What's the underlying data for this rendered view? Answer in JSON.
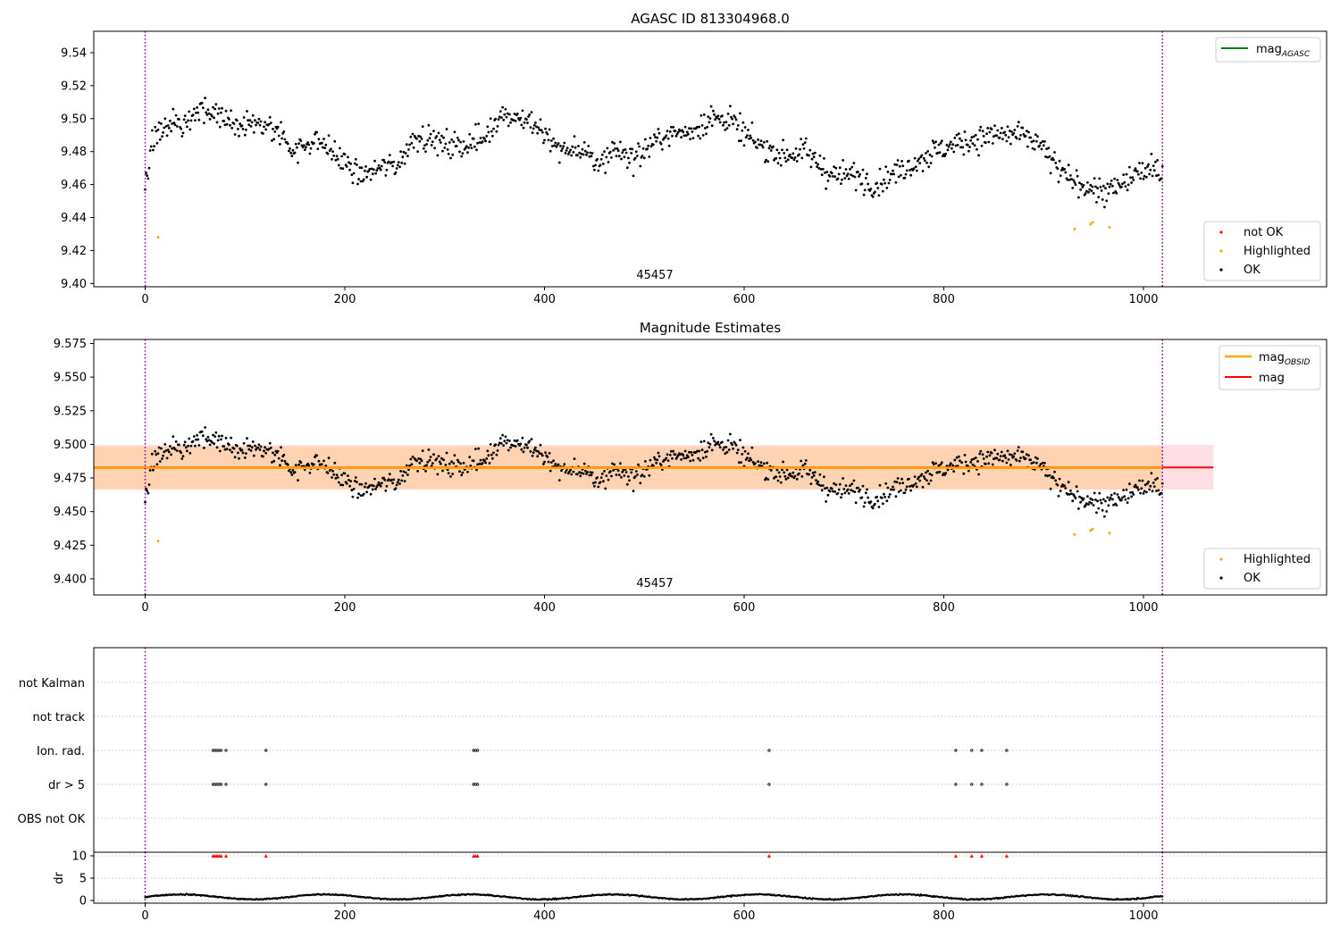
{
  "chart_data": [
    {
      "type": "scatter",
      "title": "AGASC ID 813304968.0",
      "xlim": [
        -50,
        1180
      ],
      "ylim": [
        9.398,
        9.553
      ],
      "xticks": [
        "0",
        "200",
        "400",
        "600",
        "800",
        "1000"
      ],
      "yticks": [
        "9.40",
        "9.42",
        "9.44",
        "9.46",
        "9.48",
        "9.50",
        "9.52",
        "9.54"
      ],
      "annotation": "45457",
      "obs_bounds": [
        0,
        1019
      ],
      "legend_lines": [
        {
          "label": "mag",
          "subscript": "AGASC",
          "color": "#008000"
        }
      ],
      "legend_points": [
        {
          "label": "not OK",
          "color": "#ff0000"
        },
        {
          "label": "Highlighted",
          "color": "#ffa500"
        },
        {
          "label": "OK",
          "color": "#000000"
        }
      ],
      "series": [
        {
          "name": "OK",
          "color": "#000000",
          "values": "main magnitude series, ~1020 samples (see script)"
        },
        {
          "name": "Highlighted",
          "color": "#ffa500",
          "points": [
            [
              13,
              9.428
            ],
            [
              931,
              9.433
            ],
            [
              947,
              9.436
            ],
            [
              949,
              9.437
            ],
            [
              966,
              9.434
            ]
          ]
        }
      ]
    },
    {
      "type": "scatter",
      "title": "Magnitude Estimates",
      "xlim": [
        -50,
        1180
      ],
      "ylim": [
        9.388,
        9.578
      ],
      "xticks": [
        "0",
        "200",
        "400",
        "600",
        "800",
        "1000"
      ],
      "yticks": [
        "9.400",
        "9.425",
        "9.450",
        "9.475",
        "9.500",
        "9.525",
        "9.550",
        "9.575"
      ],
      "annotation": "45457",
      "obs_bounds": [
        0,
        1019
      ],
      "mag_obsid": 9.4825,
      "mag": 9.4828,
      "band_obsid": [
        9.4665,
        9.4985
      ],
      "band_mag": [
        9.4665,
        9.4995
      ],
      "band_xrange": [
        -50,
        1070
      ],
      "legend_lines": [
        {
          "label": "mag",
          "subscript": "OBSID",
          "color": "#ffa500"
        },
        {
          "label": "mag",
          "subscript": "",
          "color": "#ff0000"
        }
      ],
      "legend_points": [
        {
          "label": "Highlighted",
          "color": "#ffa500"
        },
        {
          "label": "OK",
          "color": "#000000"
        }
      ]
    },
    {
      "type": "scatter",
      "flag_labels": [
        "not Kalman",
        "not track",
        "Ion. rad.",
        "dr > 5",
        "OBS not OK"
      ],
      "flag_events": [
        68,
        70,
        72,
        74,
        76,
        81,
        121,
        329,
        331,
        333,
        625,
        812,
        828,
        838,
        863
      ],
      "dr": {
        "ylabel": "dr",
        "yticks": [
          "0",
          "5",
          "10"
        ],
        "ylim": [
          -0.6,
          10.8
        ],
        "threshold": 10
      },
      "xticks": [
        "0",
        "200",
        "400",
        "600",
        "800",
        "1000"
      ],
      "xlim": [
        -50,
        1180
      ],
      "obs_bounds": [
        0,
        1019
      ]
    }
  ]
}
